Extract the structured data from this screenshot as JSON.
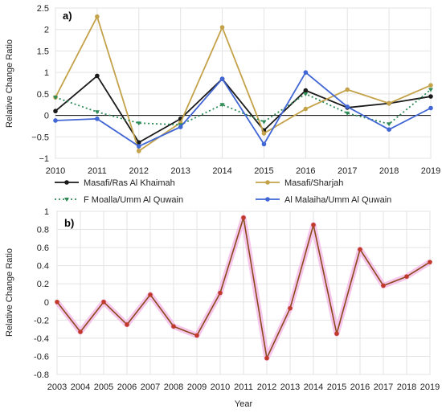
{
  "chart_data": [
    {
      "panel": "a)",
      "type": "line",
      "ylabel": "Relative Change Ratio",
      "x": [
        2010,
        2011,
        2012,
        2013,
        2014,
        2015,
        2016,
        2017,
        2018,
        2019
      ],
      "xlim": [
        2010,
        2019
      ],
      "ylim": [
        -1,
        2.5
      ],
      "yticks": [
        -1,
        -0.5,
        0,
        0.5,
        1,
        1.5,
        2,
        2.5
      ],
      "ytick_labels": [
        "−1",
        "−0.5",
        "0",
        "0.5",
        "1",
        "1.5",
        "2",
        "2.5"
      ],
      "zero_line": true,
      "grid": true,
      "legend": "below",
      "series": [
        {
          "name": "Masafi/Ras Al Khaimah",
          "color": "#1a1a1a",
          "style": "solid",
          "values": [
            0.1,
            0.92,
            -0.63,
            -0.08,
            0.85,
            -0.35,
            0.58,
            0.18,
            0.28,
            0.44
          ]
        },
        {
          "name": "Masafi/Sharjah",
          "color": "#c4a24a",
          "style": "solid",
          "values": [
            0.42,
            2.3,
            -0.83,
            -0.17,
            2.05,
            -0.42,
            0.15,
            0.6,
            0.28,
            0.7
          ]
        },
        {
          "name": "F  Moalla/Umm Al Quwain",
          "color": "#2e8b57",
          "style": "dotted",
          "values": [
            0.42,
            0.08,
            -0.18,
            -0.22,
            0.25,
            -0.15,
            0.5,
            0.05,
            -0.2,
            0.6
          ]
        },
        {
          "name": "Al Malaiha/Umm Al Quwain",
          "color": "#4166d5",
          "style": "solid",
          "values": [
            -0.12,
            -0.08,
            -0.72,
            -0.27,
            0.85,
            -0.67,
            1.0,
            0.2,
            -0.33,
            0.17
          ]
        }
      ]
    },
    {
      "panel": "b)",
      "type": "line",
      "xlabel": "Year",
      "ylabel": "Relative Change Ratio",
      "x": [
        2003,
        2004,
        2005,
        2006,
        2007,
        2008,
        2009,
        2010,
        2011,
        2012,
        2013,
        2014,
        2015,
        2016,
        2017,
        2018,
        2019
      ],
      "xlim": [
        2003,
        2019
      ],
      "ylim": [
        -0.8,
        1
      ],
      "yticks": [
        -0.8,
        -0.6,
        -0.4,
        -0.2,
        0,
        0.2,
        0.4,
        0.6,
        0.8,
        1
      ],
      "ytick_labels": [
        "-0.8",
        "-0.6",
        "-0.4",
        "-0.2",
        "0",
        "0.2",
        "0.4",
        "0.6",
        "0.8",
        "1"
      ],
      "grid": true,
      "series": [
        {
          "color": "#8b4a1a",
          "marker_color": "#c0392b",
          "glow": "#f5b8e8",
          "values": [
            0.0,
            -0.33,
            0.0,
            -0.25,
            0.08,
            -0.27,
            -0.37,
            0.1,
            0.93,
            -0.62,
            -0.07,
            0.85,
            -0.35,
            0.58,
            0.18,
            0.28,
            0.44
          ]
        }
      ]
    }
  ]
}
